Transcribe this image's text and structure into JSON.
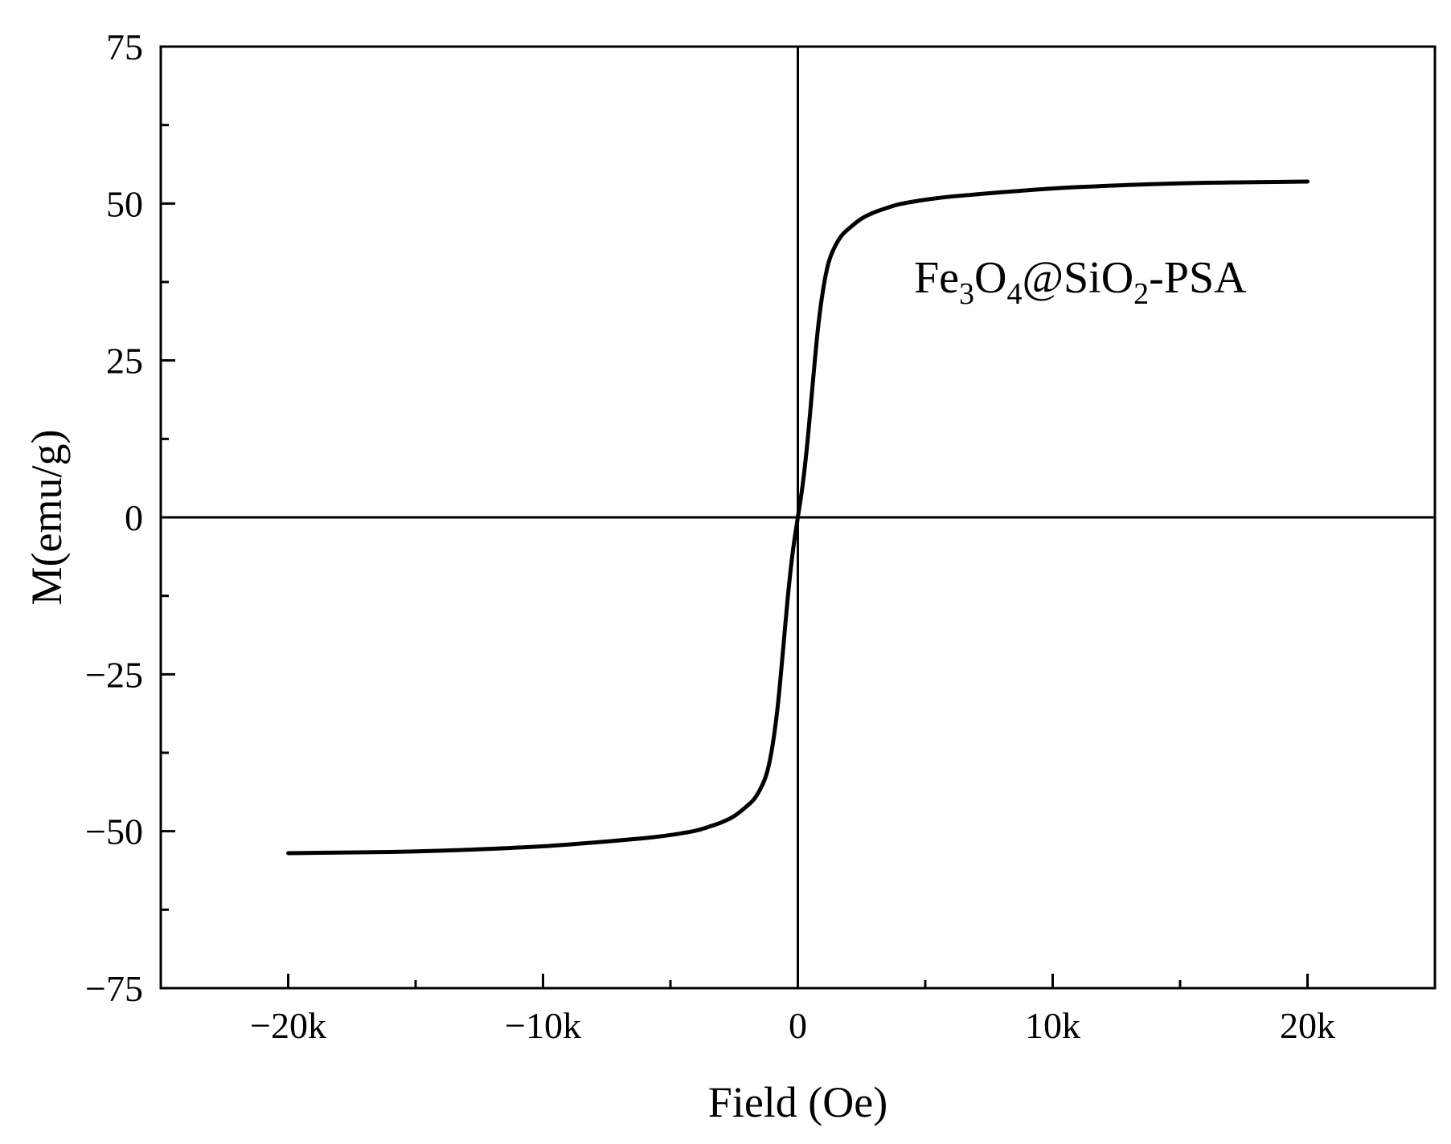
{
  "chart_data": {
    "type": "line",
    "xlabel": "Field (Oe)",
    "ylabel": "M(emu/g)",
    "xlim": [
      -25000,
      25000
    ],
    "ylim": [
      -75,
      75
    ],
    "x_ticks": [
      -20000,
      -10000,
      0,
      10000,
      20000
    ],
    "x_tick_labels": [
      "−20k",
      "−10k",
      "0",
      "10k",
      "20k"
    ],
    "x_minor_ticks": [
      -15000,
      -5000,
      5000,
      15000
    ],
    "y_ticks": [
      -75,
      -50,
      -25,
      0,
      25,
      50,
      75
    ],
    "y_tick_labels": [
      "−75",
      "−50",
      "−25",
      "0",
      "25",
      "50",
      "75"
    ],
    "y_minor_ticks": [
      -62.5,
      -37.5,
      -12.5,
      12.5,
      37.5,
      62.5
    ],
    "grid": false,
    "zero_lines": true,
    "line_color": "#000000",
    "annotation": {
      "parts": [
        {
          "text": "Fe",
          "sub": false
        },
        {
          "text": "3",
          "sub": true
        },
        {
          "text": "O",
          "sub": false
        },
        {
          "text": "4",
          "sub": true
        },
        {
          "text": "@SiO",
          "sub": false
        },
        {
          "text": "2",
          "sub": true
        },
        {
          "text": "-PSA",
          "sub": false
        }
      ]
    },
    "series": [
      {
        "x": [
          -20000,
          -18000,
          -16000,
          -14000,
          -12000,
          -10000,
          -8000,
          -6000,
          -5000,
          -4000,
          -3500,
          -3000,
          -2500,
          -2000,
          -1700,
          -1400,
          -1200,
          -1000,
          -800,
          -600,
          -400,
          -200,
          0,
          200,
          400,
          600,
          800,
          1000,
          1200,
          1400,
          1700,
          2000,
          2500,
          3000,
          3500,
          4000,
          5000,
          6000,
          8000,
          10000,
          12000,
          14000,
          16000,
          18000,
          20000
        ],
        "y": [
          -53.5,
          -53.4,
          -53.3,
          -53.1,
          -52.8,
          -52.4,
          -51.8,
          -51.1,
          -50.6,
          -49.9,
          -49.3,
          -48.6,
          -47.6,
          -46.0,
          -44.8,
          -42.7,
          -40.5,
          -36.5,
          -30.5,
          -22.0,
          -13.0,
          -5.5,
          0,
          5.5,
          13.0,
          22.0,
          30.5,
          36.5,
          40.5,
          42.7,
          44.8,
          46.0,
          47.6,
          48.6,
          49.3,
          49.9,
          50.6,
          51.1,
          51.8,
          52.4,
          52.8,
          53.1,
          53.3,
          53.4,
          53.5
        ]
      }
    ]
  }
}
